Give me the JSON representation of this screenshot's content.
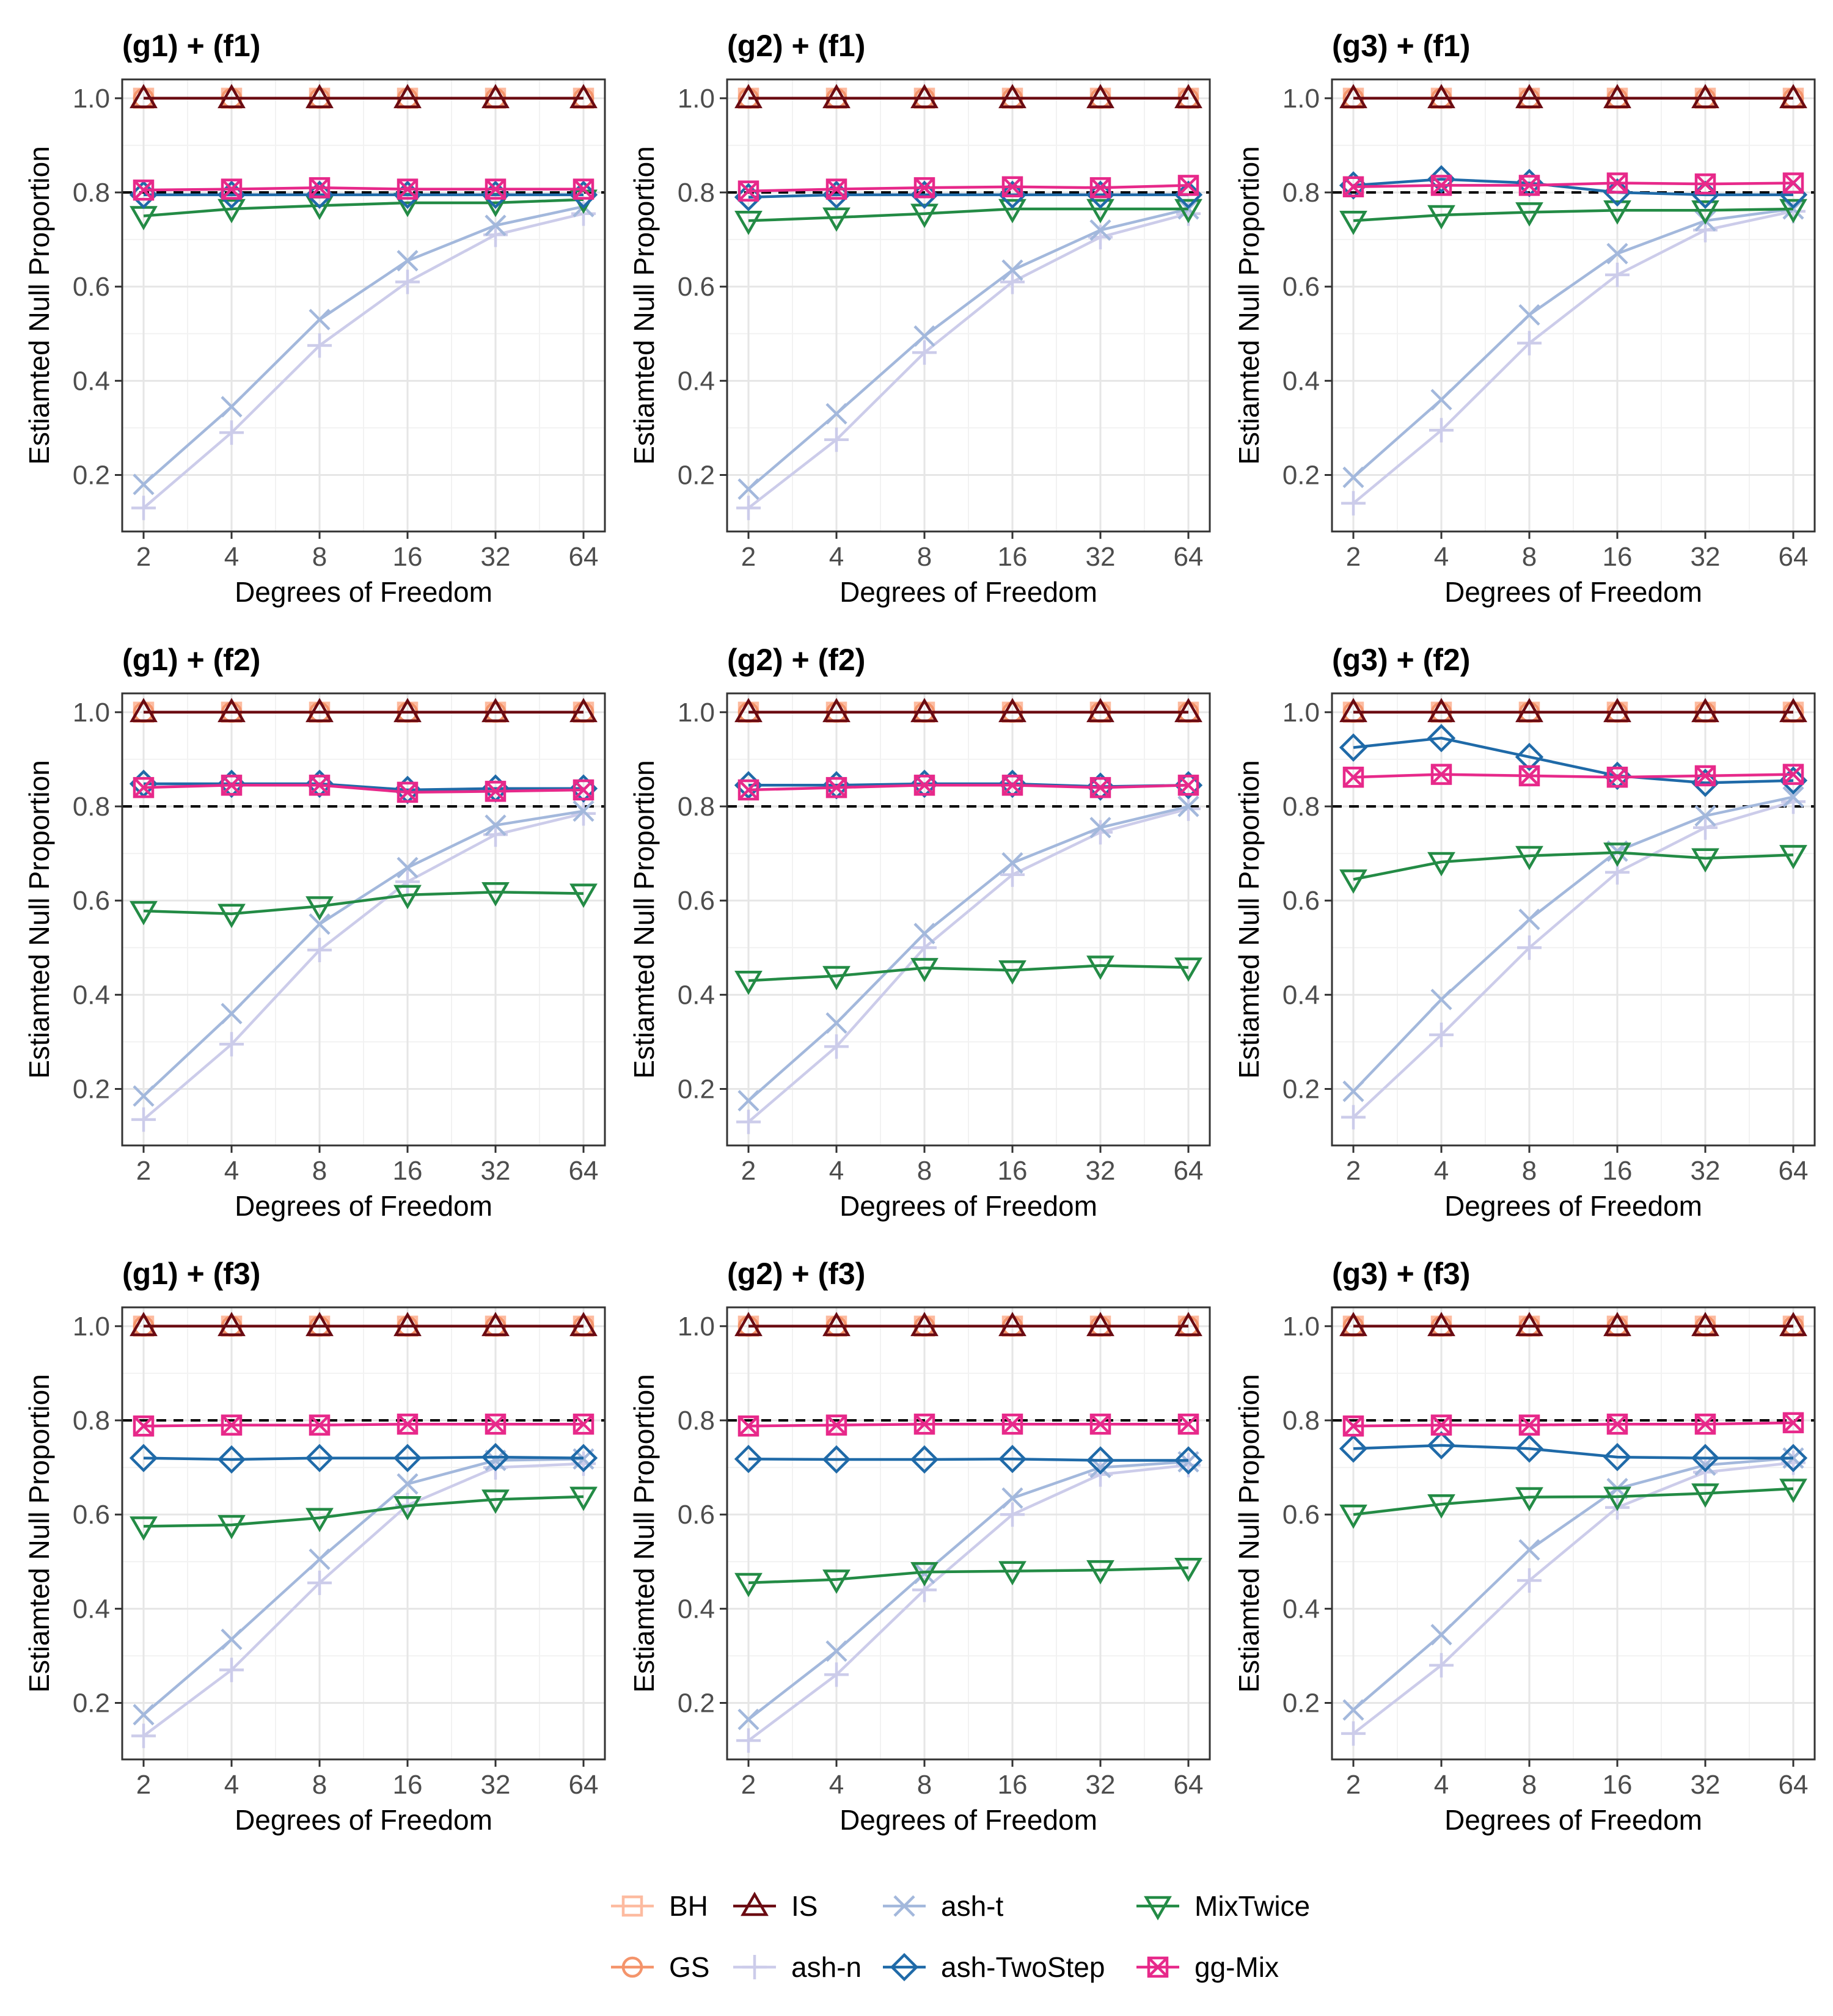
{
  "chart_data": {
    "type": "line",
    "x_ticks": [
      "2",
      "4",
      "8",
      "16",
      "32",
      "64"
    ],
    "x": [
      2,
      4,
      8,
      16,
      32,
      64
    ],
    "x_scale": "log2",
    "xlabel": "Degrees of Freedom",
    "ylabel": "Estiamted Null Proportion",
    "ylim": [
      0.08,
      1.04
    ],
    "y_ticks": [
      "0.2",
      "0.4",
      "0.6",
      "0.8",
      "1.0"
    ],
    "y_tick_values": [
      0.2,
      0.4,
      0.6,
      0.8,
      1.0
    ],
    "reference_line": {
      "y": 0.8,
      "style": "dashed",
      "color": "#000000"
    },
    "grid": true,
    "legend_position": "bottom",
    "methods": [
      {
        "key": "BH",
        "label": "BH",
        "color": "#fdbba0",
        "marker": "square"
      },
      {
        "key": "GS",
        "label": "GS",
        "color": "#f4946b",
        "marker": "circle"
      },
      {
        "key": "IS",
        "label": "IS",
        "color": "#6b0b12",
        "marker": "triangle-up"
      },
      {
        "key": "ash_n",
        "label": "ash-n",
        "color": "#ccccea",
        "marker": "plus"
      },
      {
        "key": "ash_t",
        "label": "ash-t",
        "color": "#a3b8dc",
        "marker": "cross"
      },
      {
        "key": "ash_TwoStep",
        "label": "ash-TwoStep",
        "color": "#1f6aa8",
        "marker": "diamond"
      },
      {
        "key": "MixTwice",
        "label": "MixTwice",
        "color": "#238b45",
        "marker": "triangle-down"
      },
      {
        "key": "gg_Mix",
        "label": "gg-Mix",
        "color": "#e7298a",
        "marker": "square-x"
      }
    ],
    "legend_rows": [
      [
        "BH",
        "IS",
        "ash_t",
        "MixTwice"
      ],
      [
        "GS",
        "ash_n",
        "ash_TwoStep",
        "gg_Mix"
      ]
    ],
    "panels": [
      {
        "title": "(g1) + (f1)",
        "series": {
          "BH": [
            1.0,
            1.0,
            1.0,
            1.0,
            1.0,
            1.0
          ],
          "GS": [
            1.0,
            1.0,
            1.0,
            1.0,
            1.0,
            1.0
          ],
          "IS": [
            1.0,
            1.0,
            1.0,
            1.0,
            1.0,
            1.0
          ],
          "ash_n": [
            0.13,
            0.29,
            0.475,
            0.61,
            0.71,
            0.755
          ],
          "ash_t": [
            0.18,
            0.345,
            0.53,
            0.655,
            0.73,
            0.77
          ],
          "ash_TwoStep": [
            0.795,
            0.795,
            0.795,
            0.795,
            0.795,
            0.795
          ],
          "MixTwice": [
            0.75,
            0.765,
            0.772,
            0.778,
            0.778,
            0.785
          ],
          "gg_Mix": [
            0.805,
            0.807,
            0.81,
            0.807,
            0.807,
            0.807
          ]
        }
      },
      {
        "title": "(g2) + (f1)",
        "series": {
          "BH": [
            1.0,
            1.0,
            1.0,
            1.0,
            1.0,
            1.0
          ],
          "GS": [
            1.0,
            1.0,
            1.0,
            1.0,
            1.0,
            1.0
          ],
          "IS": [
            1.0,
            1.0,
            1.0,
            1.0,
            1.0,
            1.0
          ],
          "ash_n": [
            0.13,
            0.275,
            0.46,
            0.61,
            0.705,
            0.755
          ],
          "ash_t": [
            0.17,
            0.33,
            0.495,
            0.635,
            0.72,
            0.765
          ],
          "ash_TwoStep": [
            0.79,
            0.795,
            0.795,
            0.795,
            0.795,
            0.795
          ],
          "MixTwice": [
            0.74,
            0.747,
            0.755,
            0.765,
            0.765,
            0.765
          ],
          "gg_Mix": [
            0.803,
            0.807,
            0.81,
            0.812,
            0.81,
            0.815
          ]
        }
      },
      {
        "title": "(g3) + (f1)",
        "series": {
          "BH": [
            1.0,
            1.0,
            1.0,
            1.0,
            1.0,
            1.0
          ],
          "GS": [
            1.0,
            1.0,
            1.0,
            1.0,
            1.0,
            1.0
          ],
          "IS": [
            1.0,
            1.0,
            1.0,
            1.0,
            1.0,
            1.0
          ],
          "ash_n": [
            0.14,
            0.295,
            0.48,
            0.625,
            0.72,
            0.76
          ],
          "ash_t": [
            0.195,
            0.36,
            0.54,
            0.67,
            0.74,
            0.765
          ],
          "ash_TwoStep": [
            0.815,
            0.828,
            0.82,
            0.8,
            0.795,
            0.795
          ],
          "MixTwice": [
            0.74,
            0.752,
            0.758,
            0.762,
            0.762,
            0.765
          ],
          "gg_Mix": [
            0.812,
            0.815,
            0.815,
            0.82,
            0.818,
            0.82
          ]
        }
      },
      {
        "title": "(g1) + (f2)",
        "series": {
          "BH": [
            1.0,
            1.0,
            1.0,
            1.0,
            1.0,
            1.0
          ],
          "GS": [
            1.0,
            1.0,
            1.0,
            1.0,
            1.0,
            1.0
          ],
          "IS": [
            1.0,
            1.0,
            1.0,
            1.0,
            1.0,
            1.0
          ],
          "ash_n": [
            0.135,
            0.295,
            0.495,
            0.64,
            0.74,
            0.785
          ],
          "ash_t": [
            0.185,
            0.36,
            0.55,
            0.67,
            0.76,
            0.79
          ],
          "ash_TwoStep": [
            0.848,
            0.848,
            0.848,
            0.835,
            0.838,
            0.838
          ],
          "MixTwice": [
            0.578,
            0.572,
            0.588,
            0.612,
            0.618,
            0.615
          ],
          "gg_Mix": [
            0.84,
            0.845,
            0.845,
            0.83,
            0.832,
            0.835
          ]
        }
      },
      {
        "title": "(g2) + (f2)",
        "series": {
          "BH": [
            1.0,
            1.0,
            1.0,
            1.0,
            1.0,
            1.0
          ],
          "GS": [
            1.0,
            1.0,
            1.0,
            1.0,
            1.0,
            1.0
          ],
          "IS": [
            1.0,
            1.0,
            1.0,
            1.0,
            1.0,
            1.0
          ],
          "ash_n": [
            0.13,
            0.29,
            0.5,
            0.655,
            0.745,
            0.795
          ],
          "ash_t": [
            0.175,
            0.34,
            0.53,
            0.68,
            0.755,
            0.8
          ],
          "ash_TwoStep": [
            0.845,
            0.845,
            0.848,
            0.848,
            0.842,
            0.845
          ],
          "MixTwice": [
            0.43,
            0.44,
            0.457,
            0.452,
            0.462,
            0.458
          ],
          "gg_Mix": [
            0.835,
            0.84,
            0.845,
            0.845,
            0.84,
            0.845
          ]
        }
      },
      {
        "title": "(g3) + (f2)",
        "series": {
          "BH": [
            1.0,
            1.0,
            1.0,
            1.0,
            1.0,
            1.0
          ],
          "GS": [
            1.0,
            1.0,
            1.0,
            1.0,
            1.0,
            1.0
          ],
          "IS": [
            1.0,
            1.0,
            1.0,
            1.0,
            1.0,
            1.0
          ],
          "ash_n": [
            0.14,
            0.315,
            0.5,
            0.66,
            0.755,
            0.81
          ],
          "ash_t": [
            0.195,
            0.39,
            0.56,
            0.705,
            0.78,
            0.82
          ],
          "ash_TwoStep": [
            0.925,
            0.945,
            0.905,
            0.865,
            0.85,
            0.855
          ],
          "MixTwice": [
            0.645,
            0.682,
            0.695,
            0.702,
            0.69,
            0.697
          ],
          "gg_Mix": [
            0.862,
            0.868,
            0.865,
            0.862,
            0.865,
            0.868
          ]
        }
      },
      {
        "title": "(g1) + (f3)",
        "series": {
          "BH": [
            1.0,
            1.0,
            1.0,
            1.0,
            1.0,
            1.0
          ],
          "GS": [
            1.0,
            1.0,
            1.0,
            1.0,
            1.0,
            1.0
          ],
          "IS": [
            1.0,
            1.0,
            1.0,
            1.0,
            1.0,
            1.0
          ],
          "ash_n": [
            0.13,
            0.27,
            0.455,
            0.62,
            0.7,
            0.708
          ],
          "ash_t": [
            0.175,
            0.335,
            0.505,
            0.665,
            0.715,
            0.718
          ],
          "ash_TwoStep": [
            0.72,
            0.717,
            0.72,
            0.72,
            0.722,
            0.72
          ],
          "MixTwice": [
            0.575,
            0.578,
            0.593,
            0.618,
            0.632,
            0.638
          ],
          "gg_Mix": [
            0.788,
            0.79,
            0.79,
            0.792,
            0.792,
            0.792
          ]
        }
      },
      {
        "title": "(g2) + (f3)",
        "series": {
          "BH": [
            1.0,
            1.0,
            1.0,
            1.0,
            1.0,
            1.0
          ],
          "GS": [
            1.0,
            1.0,
            1.0,
            1.0,
            1.0,
            1.0
          ],
          "IS": [
            1.0,
            1.0,
            1.0,
            1.0,
            1.0,
            1.0
          ],
          "ash_n": [
            0.12,
            0.26,
            0.44,
            0.6,
            0.685,
            0.705
          ],
          "ash_t": [
            0.165,
            0.31,
            0.475,
            0.635,
            0.7,
            0.712
          ],
          "ash_TwoStep": [
            0.718,
            0.717,
            0.717,
            0.718,
            0.715,
            0.715
          ],
          "MixTwice": [
            0.455,
            0.462,
            0.478,
            0.48,
            0.482,
            0.487
          ],
          "gg_Mix": [
            0.788,
            0.79,
            0.792,
            0.792,
            0.792,
            0.792
          ]
        }
      },
      {
        "title": "(g3) + (f3)",
        "series": {
          "BH": [
            1.0,
            1.0,
            1.0,
            1.0,
            1.0,
            1.0
          ],
          "GS": [
            1.0,
            1.0,
            1.0,
            1.0,
            1.0,
            1.0
          ],
          "IS": [
            1.0,
            1.0,
            1.0,
            1.0,
            1.0,
            1.0
          ],
          "ash_n": [
            0.135,
            0.28,
            0.46,
            0.615,
            0.69,
            0.71
          ],
          "ash_t": [
            0.185,
            0.345,
            0.525,
            0.655,
            0.705,
            0.72
          ],
          "ash_TwoStep": [
            0.74,
            0.747,
            0.74,
            0.722,
            0.72,
            0.72
          ],
          "MixTwice": [
            0.6,
            0.622,
            0.637,
            0.638,
            0.645,
            0.655
          ],
          "gg_Mix": [
            0.788,
            0.79,
            0.79,
            0.792,
            0.792,
            0.795
          ]
        }
      }
    ]
  }
}
